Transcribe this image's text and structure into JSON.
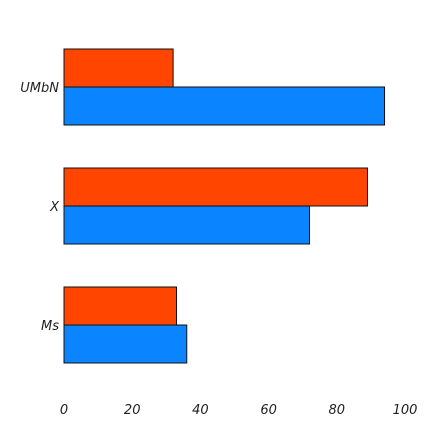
{
  "chart_data": {
    "type": "bar",
    "orientation": "horizontal",
    "categories": [
      "UMbN",
      "X",
      "Ms"
    ],
    "series": [
      {
        "values": [
          32,
          89,
          33
        ],
        "color": "#ff4500"
      },
      {
        "values": [
          94,
          72,
          36
        ],
        "color": "#0a84ff"
      }
    ],
    "xlim": [
      0,
      100
    ],
    "x_ticks": [
      0,
      20,
      40,
      60,
      80,
      100
    ],
    "x_tick_labels": [
      "0",
      "20",
      "40",
      "60",
      "80",
      "100"
    ],
    "title": "",
    "xlabel": "",
    "ylabel": "",
    "grid": false,
    "legend": "none"
  }
}
